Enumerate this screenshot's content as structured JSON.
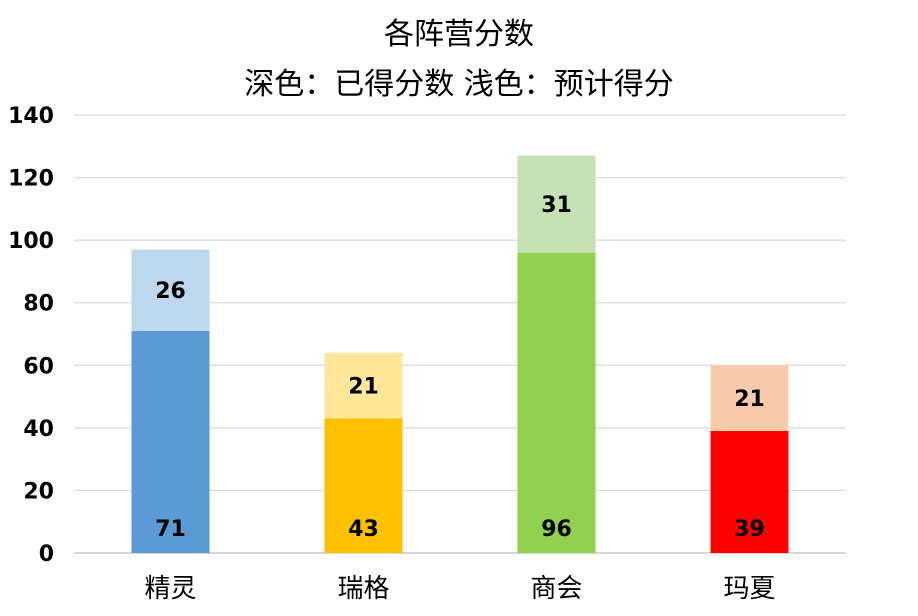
{
  "chart_data": {
    "type": "bar",
    "stacked": true,
    "title": "各阵营分数",
    "subtitle": "深色：已得分数 浅色：预计得分",
    "categories": [
      "精灵",
      "瑞格",
      "商会",
      "玛夏"
    ],
    "series": [
      {
        "values": [
          71,
          43,
          96,
          39
        ],
        "colors": [
          "#5b9bd5",
          "#ffc000",
          "#92d050",
          "#ff0000"
        ]
      },
      {
        "values": [
          26,
          21,
          31,
          21
        ],
        "colors": [
          "#bdd7ee",
          "#ffe699",
          "#c5e0b4",
          "#f8cbad"
        ]
      }
    ],
    "ylim": [
      0,
      140
    ],
    "yticks": [
      0,
      20,
      40,
      60,
      80,
      100,
      120,
      140
    ],
    "xlabel": "",
    "ylabel": "",
    "grid": true,
    "legend": "none",
    "data_labels": true
  }
}
